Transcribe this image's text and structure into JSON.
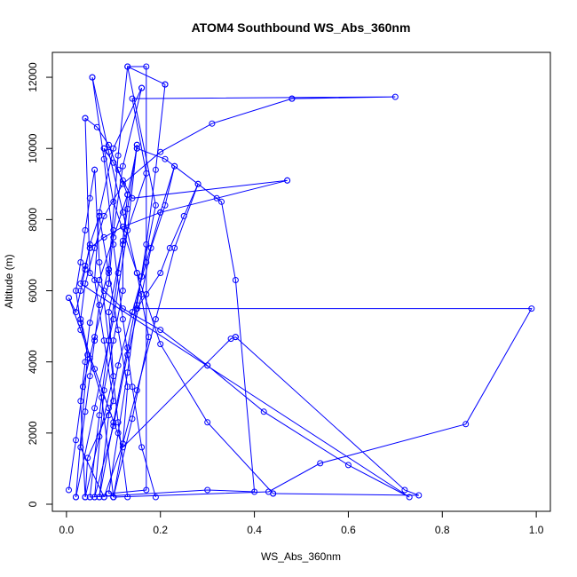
{
  "chart_data": {
    "type": "line",
    "title": "ATOM4 Southbound WS_Abs_360nm",
    "xlabel": "WS_Abs_360nm",
    "ylabel": "Altitude (m)",
    "xlim": [
      -0.03,
      1.03
    ],
    "ylim": [
      -200,
      12700
    ],
    "xticks": [
      "0.0",
      "0.2",
      "0.4",
      "0.6",
      "0.8",
      "1.0"
    ],
    "xtick_values": [
      0,
      0.2,
      0.4,
      0.6,
      0.8,
      1.0
    ],
    "yticks": [
      "0",
      "2000",
      "4000",
      "6000",
      "8000",
      "10000",
      "12000"
    ],
    "ytick_values": [
      0,
      2000,
      4000,
      6000,
      8000,
      10000,
      12000
    ],
    "grid": false,
    "color": "#0000ff",
    "series": [
      {
        "x": [
          0.005,
          0.02,
          0.035,
          0.06,
          0.09,
          0.1,
          0.12,
          0.16
        ],
        "y": [
          400,
          1800,
          3300,
          4700,
          6200,
          7700,
          9500,
          11700
        ]
      },
      {
        "x": [
          0.16,
          0.1,
          0.07,
          0.06,
          0.08,
          0.1,
          0.045,
          0.04
        ],
        "y": [
          11700,
          10000,
          8200,
          6300,
          4600,
          2900,
          1300,
          200
        ]
      },
      {
        "x": [
          0.04,
          0.07,
          0.1,
          0.09,
          0.12,
          0.17,
          0.14,
          0.7,
          0.48
        ],
        "y": [
          200,
          1900,
          3600,
          5400,
          7300,
          9300,
          11400,
          11450,
          11400
        ]
      },
      {
        "x": [
          0.48,
          0.31,
          0.2,
          0.12,
          0.08,
          0.06,
          0.04,
          0.03,
          0.05,
          0.075,
          0.1
        ],
        "y": [
          11400,
          10700,
          9900,
          9000,
          8100,
          7200,
          6200,
          5200,
          4100,
          3000,
          200
        ]
      },
      {
        "x": [
          0.1,
          0.14,
          0.175,
          0.15,
          0.12,
          0.09,
          0.055
        ],
        "y": [
          200,
          2400,
          4700,
          6500,
          8200,
          9900,
          12000
        ]
      },
      {
        "x": [
          0.055,
          0.08,
          0.1,
          0.12,
          0.14,
          0.16,
          0.19
        ],
        "y": [
          12000,
          9700,
          7300,
          5200,
          3300,
          1600,
          200
        ]
      },
      {
        "x": [
          0.13,
          0.11,
          0.09,
          0.07,
          0.06
        ],
        "y": [
          200,
          2300,
          4600,
          6800,
          9400
        ]
      },
      {
        "x": [
          0.06,
          0.05,
          0.04,
          0.03,
          0.02,
          0.03,
          0.045,
          0.02
        ],
        "y": [
          9400,
          8600,
          7700,
          6800,
          6000,
          5100,
          4200,
          200
        ]
      },
      {
        "x": [
          0.02,
          0.06,
          0.1,
          0.13,
          0.15
        ],
        "y": [
          200,
          2700,
          5200,
          7700,
          10100
        ]
      },
      {
        "x": [
          0.15,
          0.13,
          0.11,
          0.09,
          0.07,
          0.05
        ],
        "y": [
          10100,
          8300,
          6500,
          4600,
          2500,
          200
        ]
      },
      {
        "x": [
          0.05,
          0.3,
          0.4,
          0.36,
          0.33,
          0.21,
          0.15
        ],
        "y": [
          200,
          400,
          350,
          6300,
          8500,
          9700,
          10000
        ]
      },
      {
        "x": [
          0.15,
          0.13,
          0.12,
          0.12,
          0.1,
          0.08,
          0.06
        ],
        "y": [
          10000,
          8700,
          7400,
          6000,
          4600,
          3200,
          200
        ]
      },
      {
        "x": [
          0.06,
          0.1,
          0.13,
          0.16,
          0.18,
          0.21,
          0.23
        ],
        "y": [
          200,
          2200,
          4200,
          5900,
          7200,
          8400,
          9500
        ]
      },
      {
        "x": [
          0.23,
          0.2,
          0.17,
          0.14,
          0.11,
          0.09,
          0.07
        ],
        "y": [
          9500,
          8200,
          6800,
          5400,
          3900,
          2500,
          200
        ]
      },
      {
        "x": [
          0.07,
          0.1,
          0.13,
          0.16,
          0.19,
          0.13,
          0.21
        ],
        "y": [
          200,
          2300,
          4400,
          6400,
          8400,
          12300,
          11800
        ]
      },
      {
        "x": [
          0.21,
          0.19,
          0.17,
          0.15,
          0.13,
          0.11,
          0.09
        ],
        "y": [
          11800,
          9400,
          7300,
          5600,
          3700,
          2000,
          300
        ]
      },
      {
        "x": [
          0.09,
          0.17,
          0.17,
          0.13,
          0.11,
          0.09
        ],
        "y": [
          300,
          400,
          12300,
          12300,
          9800,
          6600
        ]
      },
      {
        "x": [
          0.09,
          0.07,
          0.06,
          0.05,
          0.04,
          0.03,
          0.08
        ],
        "y": [
          6600,
          5600,
          4600,
          3600,
          2600,
          1600,
          200
        ]
      },
      {
        "x": [
          0.08,
          0.12,
          0.15,
          0.19,
          0.23,
          0.28
        ],
        "y": [
          200,
          1700,
          3200,
          5200,
          7200,
          9000
        ]
      },
      {
        "x": [
          0.28,
          0.25,
          0.22,
          0.2,
          0.17,
          0.15
        ],
        "y": [
          9000,
          8100,
          7200,
          6500,
          5900,
          5500
        ]
      },
      {
        "x": [
          0.15,
          0.99,
          0.85,
          0.54,
          0.43,
          0.1
        ],
        "y": [
          5500,
          5500,
          2250,
          1150,
          350,
          200
        ]
      },
      {
        "x": [
          0.1,
          0.12,
          0.13,
          0.11,
          0.09,
          0.07
        ],
        "y": [
          200,
          1700,
          3300,
          4900,
          6500,
          8100
        ]
      },
      {
        "x": [
          0.07,
          0.05,
          0.04,
          0.03,
          0.02,
          0.005
        ],
        "y": [
          8100,
          7300,
          6600,
          6000,
          5400,
          5800
        ]
      },
      {
        "x": [
          0.005,
          0.03,
          0.06,
          0.09,
          0.12,
          0.35,
          0.36
        ],
        "y": [
          5800,
          4900,
          3800,
          2700,
          1600,
          4650,
          4700
        ]
      },
      {
        "x": [
          0.36,
          0.72,
          0.75,
          0.44
        ],
        "y": [
          4700,
          400,
          250,
          300
        ]
      },
      {
        "x": [
          0.44,
          0.3,
          0.2,
          0.15,
          0.1,
          0.08
        ],
        "y": [
          300,
          2300,
          4500,
          6500,
          8500,
          10000
        ]
      },
      {
        "x": [
          0.08,
          0.1,
          0.12,
          0.14,
          0.47
        ],
        "y": [
          10000,
          9600,
          9100,
          8600,
          9100
        ]
      },
      {
        "x": [
          0.47,
          0.32,
          0.2,
          0.12,
          0.08,
          0.05
        ],
        "y": [
          9100,
          8600,
          8200,
          7800,
          7500,
          7200
        ]
      },
      {
        "x": [
          0.05,
          0.04,
          0.03,
          0.73,
          0.6,
          0.42,
          0.3
        ],
        "y": [
          7200,
          6700,
          6200,
          200,
          1100,
          2600,
          3900
        ]
      },
      {
        "x": [
          0.3,
          0.2,
          0.12,
          0.08,
          0.05,
          0.04
        ],
        "y": [
          3900,
          4900,
          5500,
          6000,
          6500,
          10850
        ]
      },
      {
        "x": [
          0.04,
          0.065,
          0.09,
          0.11,
          0.13
        ],
        "y": [
          10850,
          10600,
          10100,
          9400,
          8700
        ]
      },
      {
        "x": [
          0.13,
          0.1,
          0.07,
          0.05,
          0.04,
          0.03,
          0.04
        ],
        "y": [
          8700,
          7500,
          6300,
          5100,
          4000,
          2900,
          200
        ]
      }
    ]
  }
}
